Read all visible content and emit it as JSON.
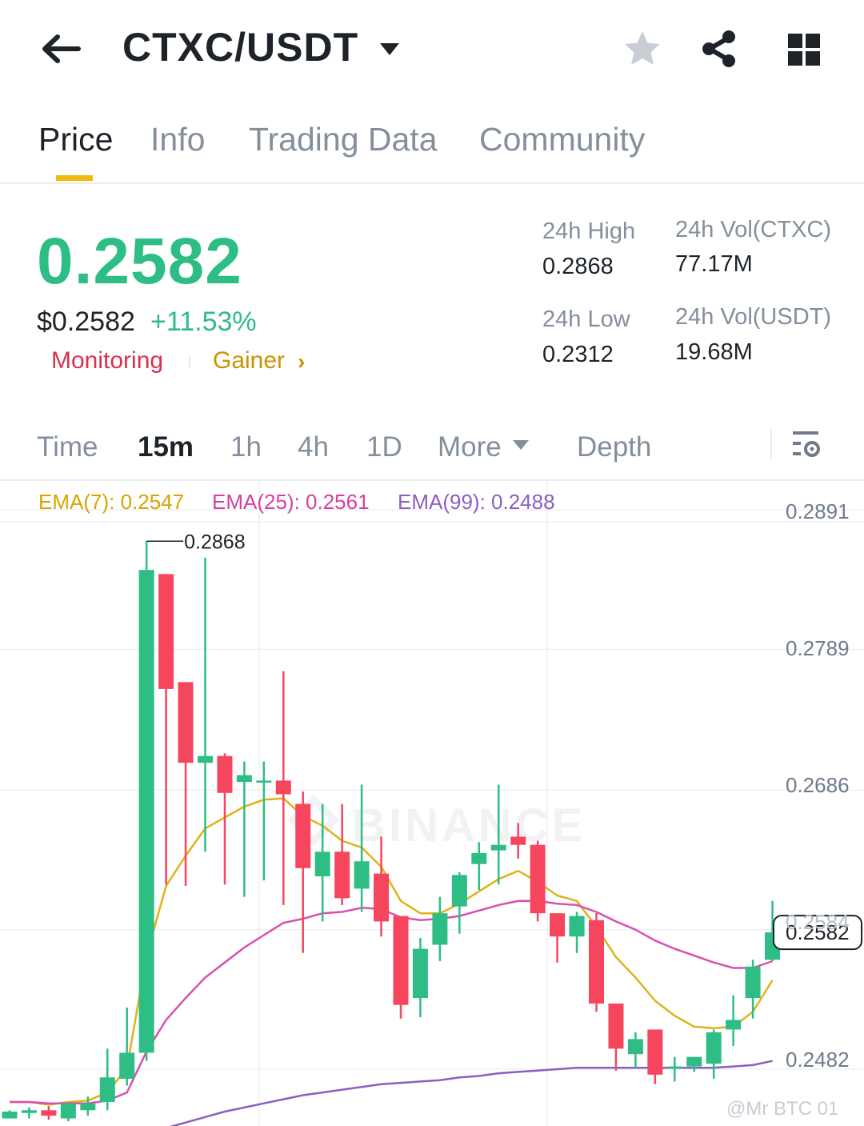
{
  "header": {
    "pair": "CTXC/USDT",
    "icons": [
      "back-arrow-icon",
      "caret-down-icon",
      "star-icon",
      "share-icon",
      "grid-icon"
    ]
  },
  "tabs": [
    "Price",
    "Info",
    "Trading Data",
    "Community"
  ],
  "active_tab": "Price",
  "price": {
    "last": "0.2582",
    "usd": "$0.2582",
    "change": "+11.53%",
    "tag_monitoring": "Monitoring",
    "tag_gainer": "Gainer",
    "tag_arrow": "›"
  },
  "stats": {
    "high_label": "24h High",
    "high_value": "0.2868",
    "low_label": "24h Low",
    "low_value": "0.2312",
    "vol_base_label": "24h Vol(CTXC)",
    "vol_base_value": "77.17M",
    "vol_quote_label": "24h Vol(USDT)",
    "vol_quote_value": "19.68M"
  },
  "intervals": {
    "items": [
      "Time",
      "15m",
      "1h",
      "4h",
      "1D",
      "More",
      "Depth"
    ],
    "active": "15m"
  },
  "indicators": {
    "ema7": "EMA(7): 0.2547",
    "ema25": "EMA(25): 0.2561",
    "ema99": "EMA(99): 0.2488"
  },
  "colors": {
    "up": "#2ebd85",
    "down": "#f6465d",
    "accent": "#f0b90b",
    "ema7": "#e0b218",
    "ema25": "#d94fb0",
    "ema99": "#8b5fc1"
  },
  "chart_data": {
    "type": "candlestick",
    "y_ticks": [
      "0.2891",
      "0.2789",
      "0.2686",
      "0.2584",
      "0.2482"
    ],
    "ylim": [
      0.2445,
      0.2925
    ],
    "high_marker": "0.2868",
    "current_price_label": "0.2582",
    "watermark": "BINANCE",
    "candles": [
      {
        "o": 0.2446,
        "h": 0.2452,
        "l": 0.2446,
        "c": 0.2451
      },
      {
        "o": 0.245,
        "h": 0.2454,
        "l": 0.2446,
        "c": 0.2452
      },
      {
        "o": 0.2452,
        "h": 0.2455,
        "l": 0.2445,
        "c": 0.2448
      },
      {
        "o": 0.2446,
        "h": 0.2457,
        "l": 0.2444,
        "c": 0.2457
      },
      {
        "o": 0.2452,
        "h": 0.2462,
        "l": 0.2448,
        "c": 0.2457
      },
      {
        "o": 0.2458,
        "h": 0.2497,
        "l": 0.2452,
        "c": 0.2476
      },
      {
        "o": 0.2475,
        "h": 0.2527,
        "l": 0.247,
        "c": 0.2494
      },
      {
        "o": 0.2494,
        "h": 0.2868,
        "l": 0.2488,
        "c": 0.2847
      },
      {
        "o": 0.2844,
        "h": 0.2844,
        "l": 0.2617,
        "c": 0.276
      },
      {
        "o": 0.2765,
        "h": 0.2765,
        "l": 0.2616,
        "c": 0.2706
      },
      {
        "o": 0.2706,
        "h": 0.2856,
        "l": 0.2641,
        "c": 0.2711
      },
      {
        "o": 0.2711,
        "h": 0.2713,
        "l": 0.2617,
        "c": 0.2684
      },
      {
        "o": 0.2692,
        "h": 0.2707,
        "l": 0.2608,
        "c": 0.2697
      },
      {
        "o": 0.2693,
        "h": 0.2707,
        "l": 0.262,
        "c": 0.2693
      },
      {
        "o": 0.2693,
        "h": 0.2773,
        "l": 0.2602,
        "c": 0.2683
      },
      {
        "o": 0.2676,
        "h": 0.2685,
        "l": 0.2567,
        "c": 0.2629
      },
      {
        "o": 0.2623,
        "h": 0.2676,
        "l": 0.259,
        "c": 0.2641
      },
      {
        "o": 0.2641,
        "h": 0.2676,
        "l": 0.2602,
        "c": 0.2607
      },
      {
        "o": 0.2614,
        "h": 0.269,
        "l": 0.2597,
        "c": 0.2634
      },
      {
        "o": 0.2625,
        "h": 0.2652,
        "l": 0.2579,
        "c": 0.259
      },
      {
        "o": 0.2594,
        "h": 0.2594,
        "l": 0.2519,
        "c": 0.2529
      },
      {
        "o": 0.2534,
        "h": 0.2578,
        "l": 0.252,
        "c": 0.257
      },
      {
        "o": 0.2573,
        "h": 0.2608,
        "l": 0.2561,
        "c": 0.2596
      },
      {
        "o": 0.2601,
        "h": 0.2626,
        "l": 0.2581,
        "c": 0.2624
      },
      {
        "o": 0.2632,
        "h": 0.2648,
        "l": 0.2613,
        "c": 0.264
      },
      {
        "o": 0.2642,
        "h": 0.269,
        "l": 0.2617,
        "c": 0.2646
      },
      {
        "o": 0.2652,
        "h": 0.2662,
        "l": 0.2636,
        "c": 0.2646
      },
      {
        "o": 0.2646,
        "h": 0.2649,
        "l": 0.259,
        "c": 0.2596
      },
      {
        "o": 0.2596,
        "h": 0.2596,
        "l": 0.256,
        "c": 0.2579
      },
      {
        "o": 0.2579,
        "h": 0.2597,
        "l": 0.2567,
        "c": 0.2594
      },
      {
        "o": 0.2591,
        "h": 0.2596,
        "l": 0.2524,
        "c": 0.253
      },
      {
        "o": 0.253,
        "h": 0.253,
        "l": 0.2481,
        "c": 0.2497
      },
      {
        "o": 0.2493,
        "h": 0.2509,
        "l": 0.2483,
        "c": 0.2504
      },
      {
        "o": 0.2511,
        "h": 0.2511,
        "l": 0.2471,
        "c": 0.2478
      },
      {
        "o": 0.2484,
        "h": 0.2491,
        "l": 0.2473,
        "c": 0.2484
      },
      {
        "o": 0.2484,
        "h": 0.2491,
        "l": 0.248,
        "c": 0.2491
      },
      {
        "o": 0.2486,
        "h": 0.2511,
        "l": 0.2475,
        "c": 0.2509
      },
      {
        "o": 0.2511,
        "h": 0.2536,
        "l": 0.2499,
        "c": 0.2518
      },
      {
        "o": 0.2534,
        "h": 0.2562,
        "l": 0.2519,
        "c": 0.2557
      },
      {
        "o": 0.2562,
        "h": 0.2605,
        "l": 0.2561,
        "c": 0.2582
      }
    ],
    "series": [
      {
        "name": "EMA(7)",
        "values": [
          0.2458,
          0.2458,
          0.2456,
          0.2458,
          0.2459,
          0.2465,
          0.2483,
          0.2565,
          0.2616,
          0.2638,
          0.2658,
          0.2666,
          0.2674,
          0.2679,
          0.268,
          0.2667,
          0.266,
          0.2649,
          0.2644,
          0.263,
          0.2605,
          0.2596,
          0.2596,
          0.2603,
          0.2612,
          0.2621,
          0.2627,
          0.2619,
          0.2609,
          0.2605,
          0.2586,
          0.2564,
          0.2549,
          0.2532,
          0.2521,
          0.2513,
          0.2512,
          0.2513,
          0.2524,
          0.2547
        ]
      },
      {
        "name": "EMA(25)",
        "values": [
          0.2458,
          0.2458,
          0.2457,
          0.2457,
          0.2457,
          0.2459,
          0.2465,
          0.2495,
          0.2518,
          0.2534,
          0.2549,
          0.256,
          0.2571,
          0.258,
          0.2589,
          0.2592,
          0.2596,
          0.2597,
          0.26,
          0.2599,
          0.2593,
          0.2591,
          0.2592,
          0.2594,
          0.2598,
          0.2602,
          0.2605,
          0.2605,
          0.2603,
          0.2602,
          0.2597,
          0.259,
          0.2584,
          0.2576,
          0.257,
          0.2565,
          0.256,
          0.2556,
          0.2556,
          0.2561
        ]
      },
      {
        "name": "EMA(99)",
        "values": [
          0.242,
          0.2421,
          0.2422,
          0.2423,
          0.2424,
          0.2426,
          0.2428,
          0.2434,
          0.2439,
          0.2443,
          0.2447,
          0.2451,
          0.2454,
          0.2457,
          0.246,
          0.2463,
          0.2465,
          0.2467,
          0.2469,
          0.2471,
          0.2472,
          0.2473,
          0.2474,
          0.2476,
          0.2477,
          0.2479,
          0.248,
          0.2481,
          0.2482,
          0.2483,
          0.2483,
          0.2483,
          0.2483,
          0.2483,
          0.2483,
          0.2483,
          0.2483,
          0.2484,
          0.2485,
          0.2488
        ]
      }
    ]
  },
  "footer_watermark": "@Mr BTC 01"
}
